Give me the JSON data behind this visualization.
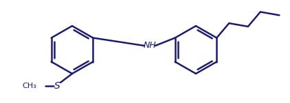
{
  "line_color": "#1a1a6e",
  "background_color": "#ffffff",
  "line_width": 1.8,
  "nh_label": "NH",
  "s_label": "S",
  "ch3_label": "CH₃",
  "figsize": [
    4.22,
    1.51
  ],
  "dpi": 100
}
